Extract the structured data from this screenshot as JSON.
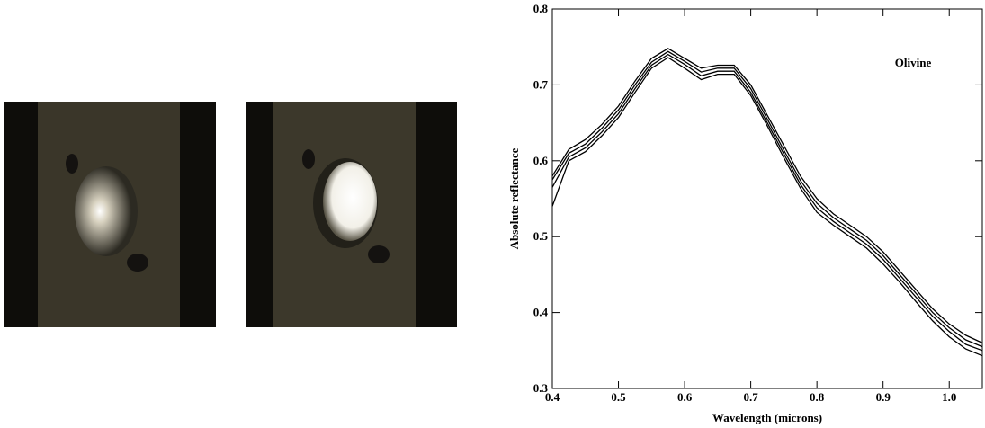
{
  "chart_data": {
    "type": "line",
    "annotation": "Olivine",
    "xlabel": "Wavelength (microns)",
    "ylabel": "Absolute reflectance",
    "x": [
      0.4,
      0.425,
      0.45,
      0.475,
      0.5,
      0.525,
      0.55,
      0.575,
      0.6,
      0.625,
      0.65,
      0.675,
      0.7,
      0.725,
      0.75,
      0.775,
      0.8,
      0.825,
      0.85,
      0.875,
      0.9,
      0.925,
      0.95,
      0.975,
      1.0,
      1.025,
      1.05
    ],
    "series": [
      {
        "color": "#000000",
        "values": [
          0.58,
          0.615,
          0.628,
          0.648,
          0.672,
          0.705,
          0.735,
          0.748,
          0.735,
          0.722,
          0.726,
          0.726,
          0.7,
          0.66,
          0.62,
          0.58,
          0.55,
          0.53,
          0.515,
          0.5,
          0.48,
          0.455,
          0.43,
          0.405,
          0.385,
          0.37,
          0.36
        ]
      },
      {
        "color": "#000000",
        "values": [
          0.575,
          0.61,
          0.622,
          0.643,
          0.667,
          0.7,
          0.73,
          0.744,
          0.731,
          0.717,
          0.722,
          0.722,
          0.695,
          0.655,
          0.614,
          0.574,
          0.544,
          0.525,
          0.51,
          0.495,
          0.475,
          0.45,
          0.425,
          0.4,
          0.38,
          0.364,
          0.355
        ]
      },
      {
        "color": "#000000",
        "values": [
          0.565,
          0.605,
          0.617,
          0.638,
          0.662,
          0.695,
          0.726,
          0.74,
          0.727,
          0.712,
          0.718,
          0.718,
          0.69,
          0.65,
          0.609,
          0.569,
          0.538,
          0.52,
          0.505,
          0.49,
          0.47,
          0.445,
          0.42,
          0.395,
          0.375,
          0.358,
          0.35
        ]
      },
      {
        "color": "#000000",
        "values": [
          0.54,
          0.6,
          0.612,
          0.633,
          0.657,
          0.69,
          0.722,
          0.736,
          0.722,
          0.707,
          0.714,
          0.714,
          0.686,
          0.646,
          0.604,
          0.564,
          0.532,
          0.515,
          0.5,
          0.485,
          0.464,
          0.44,
          0.414,
          0.389,
          0.368,
          0.352,
          0.343
        ]
      }
    ],
    "xlim": [
      0.4,
      1.05
    ],
    "ylim": [
      0.3,
      0.8
    ],
    "xticks": [
      0.4,
      0.5,
      0.6,
      0.7,
      0.8,
      0.9,
      {
        "value": 1.0,
        "label": "1.0"
      }
    ],
    "yticks": [
      0.3,
      0.4,
      0.5,
      0.6,
      0.7,
      0.8
    ]
  }
}
